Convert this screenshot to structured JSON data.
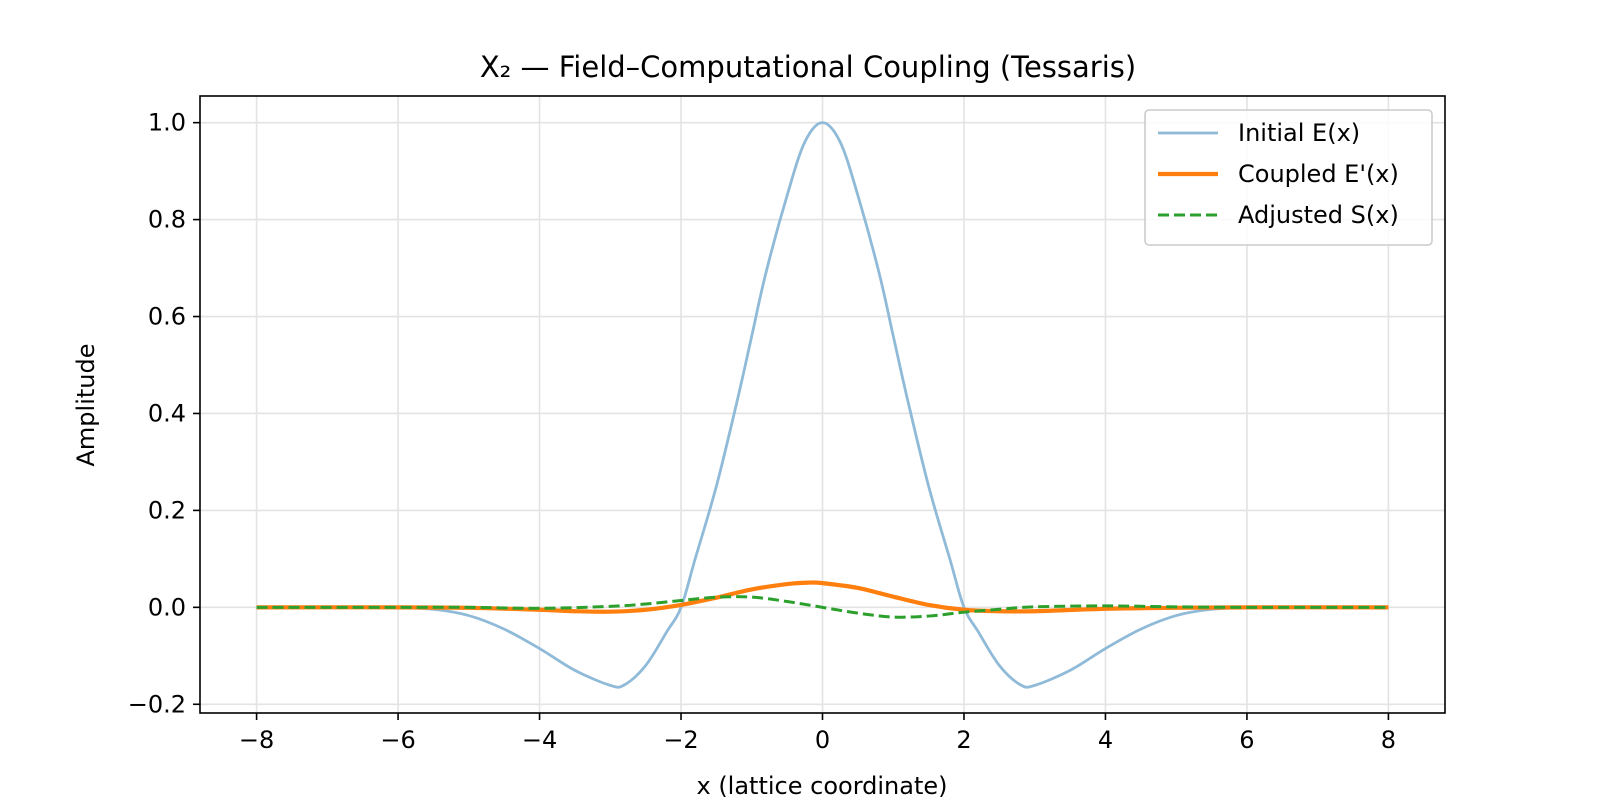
{
  "chart_data": {
    "type": "line",
    "title": "X₂ — Field–Computational Coupling (Tessaris)",
    "xlabel": "x (lattice coordinate)",
    "ylabel": "Amplitude",
    "xlim": [
      -8.8,
      8.8
    ],
    "ylim": [
      -0.218,
      1.055
    ],
    "xticks": [
      -8,
      -6,
      -4,
      -2,
      0,
      2,
      4,
      6,
      8
    ],
    "xtick_labels": [
      "−8",
      "−6",
      "−4",
      "−2",
      "0",
      "2",
      "4",
      "6",
      "8"
    ],
    "yticks": [
      -0.2,
      0.0,
      0.2,
      0.4,
      0.6,
      0.8,
      1.0
    ],
    "ytick_labels": [
      "−0.2",
      "0.0",
      "0.2",
      "0.4",
      "0.6",
      "0.8",
      "1.0"
    ],
    "grid": true,
    "legend_position": "upper-right",
    "series": [
      {
        "name": "Initial E(x)",
        "color": "#8fbad8",
        "style": "solid",
        "x": [
          -8,
          -7,
          -6,
          -5.5,
          -5,
          -4.5,
          -4,
          -3.5,
          -3,
          -2.8,
          -2.5,
          -2.2,
          -2,
          -1.8,
          -1.5,
          -1.2,
          -1,
          -0.8,
          -0.5,
          -0.25,
          0,
          0.25,
          0.5,
          0.8,
          1,
          1.2,
          1.5,
          1.8,
          2,
          2.2,
          2.5,
          2.8,
          3,
          3.5,
          4,
          4.5,
          5,
          5.5,
          6,
          7,
          8
        ],
        "y": [
          0,
          0,
          -0.001,
          -0.004,
          -0.017,
          -0.045,
          -0.085,
          -0.13,
          -0.161,
          -0.16,
          -0.12,
          -0.05,
          0.0,
          0.1,
          0.25,
          0.43,
          0.56,
          0.69,
          0.85,
          0.96,
          1.0,
          0.96,
          0.85,
          0.69,
          0.56,
          0.43,
          0.25,
          0.1,
          0.0,
          -0.05,
          -0.12,
          -0.16,
          -0.161,
          -0.13,
          -0.085,
          -0.045,
          -0.017,
          -0.004,
          -0.001,
          0,
          0
        ]
      },
      {
        "name": "Coupled E'(x)",
        "color": "#ff7f0e",
        "style": "solid",
        "x": [
          -8,
          -6,
          -5,
          -4,
          -3.5,
          -3,
          -2.5,
          -2,
          -1.5,
          -1,
          -0.5,
          -0.2,
          0,
          0.5,
          1,
          1.5,
          2,
          2.5,
          3,
          4,
          5,
          6,
          8
        ],
        "y": [
          0,
          0,
          -0.001,
          -0.005,
          -0.008,
          -0.009,
          -0.005,
          0.005,
          0.02,
          0.037,
          0.048,
          0.051,
          0.05,
          0.04,
          0.022,
          0.005,
          -0.005,
          -0.008,
          -0.008,
          -0.003,
          -0.001,
          0,
          0
        ]
      },
      {
        "name": "Adjusted S(x)",
        "color": "#2ca02c",
        "style": "dashed",
        "x": [
          -8,
          -6,
          -5,
          -4,
          -3,
          -2.5,
          -2,
          -1.5,
          -1,
          -0.5,
          0,
          0.5,
          1,
          1.5,
          2,
          2.5,
          3,
          4,
          5,
          6,
          8
        ],
        "y": [
          0,
          0,
          0,
          -0.002,
          0.002,
          0.007,
          0.014,
          0.021,
          0.021,
          0.012,
          0.0,
          -0.012,
          -0.02,
          -0.018,
          -0.01,
          -0.004,
          0.001,
          0.003,
          0.001,
          0,
          0
        ]
      }
    ]
  }
}
